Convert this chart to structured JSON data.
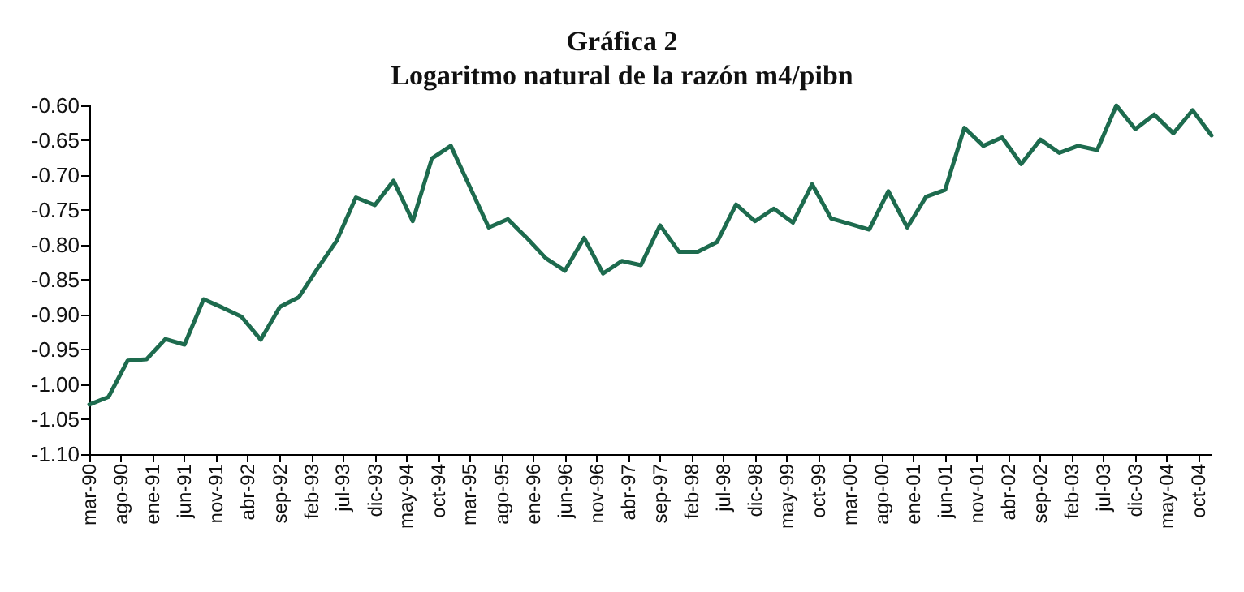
{
  "chart_data": {
    "type": "line",
    "title": "Gráfica 2",
    "subtitle": "Logaritmo natural de la razón m4/pibn",
    "x": [
      "1990-03",
      "1990-06",
      "1990-09",
      "1990-12",
      "1991-03",
      "1991-06",
      "1991-09",
      "1991-12",
      "1992-03",
      "1992-06",
      "1992-09",
      "1992-12",
      "1993-03",
      "1993-06",
      "1993-09",
      "1993-12",
      "1994-03",
      "1994-06",
      "1994-09",
      "1994-12",
      "1995-03",
      "1995-06",
      "1995-09",
      "1995-12",
      "1996-03",
      "1996-06",
      "1996-09",
      "1996-12",
      "1997-03",
      "1997-06",
      "1997-09",
      "1997-12",
      "1998-03",
      "1998-06",
      "1998-09",
      "1998-12",
      "1999-03",
      "1999-06",
      "1999-09",
      "1999-12",
      "2000-03",
      "2000-06",
      "2000-09",
      "2000-12",
      "2001-03",
      "2001-06",
      "2001-09",
      "2001-12",
      "2002-03",
      "2002-06",
      "2002-09",
      "2002-12",
      "2003-03",
      "2003-06",
      "2003-09",
      "2003-12",
      "2004-03",
      "2004-06",
      "2004-09",
      "2004-12"
    ],
    "series": [
      {
        "color": "#1d6b4e",
        "values": [
          -1.029,
          -1.018,
          -0.966,
          -0.964,
          -0.935,
          -0.943,
          -0.878,
          -0.89,
          -0.903,
          -0.936,
          -0.889,
          -0.875,
          -0.834,
          -0.794,
          -0.732,
          -0.743,
          -0.708,
          -0.766,
          -0.676,
          -0.658,
          -0.716,
          -0.775,
          -0.763,
          -0.79,
          -0.819,
          -0.837,
          -0.79,
          -0.841,
          -0.823,
          -0.829,
          -0.772,
          -0.81,
          -0.81,
          -0.796,
          -0.742,
          -0.766,
          -0.748,
          -0.768,
          -0.713,
          -0.762,
          -0.77,
          -0.778,
          -0.723,
          -0.775,
          -0.731,
          -0.721,
          -0.632,
          -0.658,
          -0.646,
          -0.684,
          -0.649,
          -0.668,
          -0.658,
          -0.664,
          -0.6,
          -0.634,
          -0.613,
          -0.64,
          -0.607,
          -0.643
        ]
      }
    ],
    "xlim": [
      "1990-03",
      "2004-12"
    ],
    "xticks": [
      {
        "value": "1990-03",
        "label": "mar-90"
      },
      {
        "value": "1990-08",
        "label": "ago-90"
      },
      {
        "value": "1991-01",
        "label": "ene-91"
      },
      {
        "value": "1991-06",
        "label": "jun-91"
      },
      {
        "value": "1991-11",
        "label": "nov-91"
      },
      {
        "value": "1992-04",
        "label": "abr-92"
      },
      {
        "value": "1992-09",
        "label": "sep-92"
      },
      {
        "value": "1993-02",
        "label": "feb-93"
      },
      {
        "value": "1993-07",
        "label": "jul-93"
      },
      {
        "value": "1993-12",
        "label": "dic-93"
      },
      {
        "value": "1994-05",
        "label": "may-94"
      },
      {
        "value": "1994-10",
        "label": "oct-94"
      },
      {
        "value": "1995-03",
        "label": "mar-95"
      },
      {
        "value": "1995-08",
        "label": "ago-95"
      },
      {
        "value": "1996-01",
        "label": "ene-96"
      },
      {
        "value": "1996-06",
        "label": "jun-96"
      },
      {
        "value": "1996-11",
        "label": "nov-96"
      },
      {
        "value": "1997-04",
        "label": "abr-97"
      },
      {
        "value": "1997-09",
        "label": "sep-97"
      },
      {
        "value": "1998-02",
        "label": "feb-98"
      },
      {
        "value": "1998-07",
        "label": "jul-98"
      },
      {
        "value": "1998-12",
        "label": "dic-98"
      },
      {
        "value": "1999-05",
        "label": "may-99"
      },
      {
        "value": "1999-10",
        "label": "oct-99"
      },
      {
        "value": "2000-03",
        "label": "mar-00"
      },
      {
        "value": "2000-08",
        "label": "ago-00"
      },
      {
        "value": "2001-01",
        "label": "ene-01"
      },
      {
        "value": "2001-06",
        "label": "jun-01"
      },
      {
        "value": "2001-11",
        "label": "nov-01"
      },
      {
        "value": "2002-04",
        "label": "abr-02"
      },
      {
        "value": "2002-09",
        "label": "sep-02"
      },
      {
        "value": "2003-02",
        "label": "feb-03"
      },
      {
        "value": "2003-07",
        "label": "jul-03"
      },
      {
        "value": "2003-12",
        "label": "dic-03"
      },
      {
        "value": "2004-05",
        "label": "may-04"
      },
      {
        "value": "2004-10",
        "label": "oct-04"
      }
    ],
    "ylim": [
      -1.1,
      -0.6
    ],
    "yticks": [
      {
        "value": -1.1,
        "label": "-1.10"
      },
      -1.05,
      {
        "value": -1.0,
        "label": "-1.00"
      },
      -0.95,
      {
        "value": -0.9,
        "label": "-0.90"
      },
      -0.85,
      {
        "value": -0.8,
        "label": "-0.80"
      },
      -0.75,
      {
        "value": -0.7,
        "label": "-0.70"
      },
      -0.65,
      {
        "value": -0.6,
        "label": "-0.60"
      }
    ],
    "grid": false,
    "marker": "none",
    "line_style": "solid"
  }
}
